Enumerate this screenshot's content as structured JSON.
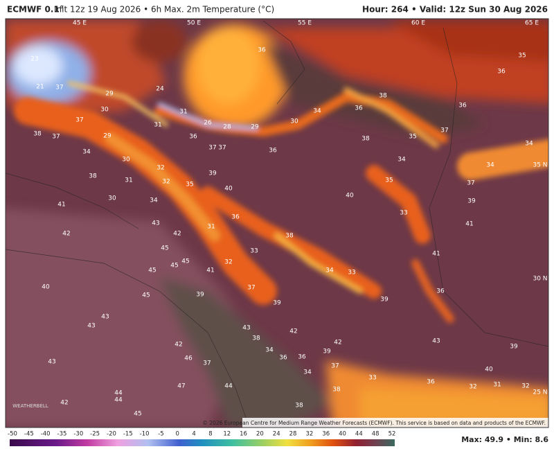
{
  "header": {
    "model": "ECMWF 0.1°",
    "description": "Init 12z 19 Aug 2026 • 6h Max. 2m Temperature (°C)",
    "valid": "Hour: 264 • Valid: 12z Sun 30 Aug 2026"
  },
  "map": {
    "grid_labels": [
      "45 E",
      "50 E",
      "55 E",
      "60 E",
      "65 E",
      "35 N",
      "30 N",
      "25 N"
    ],
    "temperature_labels": [
      36,
      35,
      36,
      36,
      38,
      36,
      34,
      37,
      35,
      38,
      34,
      34,
      34,
      37,
      35,
      40,
      33,
      39,
      41,
      41,
      36,
      39,
      33,
      34,
      38,
      33,
      36,
      31,
      32,
      41,
      37,
      39,
      40,
      35,
      32,
      32,
      34,
      31,
      30,
      30,
      38,
      34,
      37,
      38,
      41,
      42,
      43,
      42,
      45,
      45,
      45,
      45,
      45,
      39,
      40,
      43,
      43,
      43,
      42,
      46,
      37,
      47,
      44,
      43,
      38,
      34,
      36,
      36,
      39,
      42,
      37,
      42,
      34,
      38,
      33,
      36,
      43,
      39,
      40,
      32,
      31,
      32,
      38,
      44,
      44,
      42,
      45,
      23,
      21,
      37,
      30,
      29,
      24,
      31,
      31,
      26,
      28,
      29,
      30,
      36,
      36,
      37,
      37,
      29,
      37,
      39
    ],
    "copyright": "© 2026 European Centre for Medium Range Weather Forecasts (ECMWF). This service is based on data and products of the ECMWF.",
    "logo": "WEATHERBELL"
  },
  "colorbar": {
    "ticks": [
      -50,
      -45,
      -40,
      -35,
      -30,
      -25,
      -20,
      -15,
      -10,
      -5,
      0,
      4,
      8,
      12,
      16,
      20,
      24,
      28,
      32,
      36,
      40,
      44,
      48,
      52
    ]
  },
  "stats": "Max: 49.9 • Min: 8.6"
}
